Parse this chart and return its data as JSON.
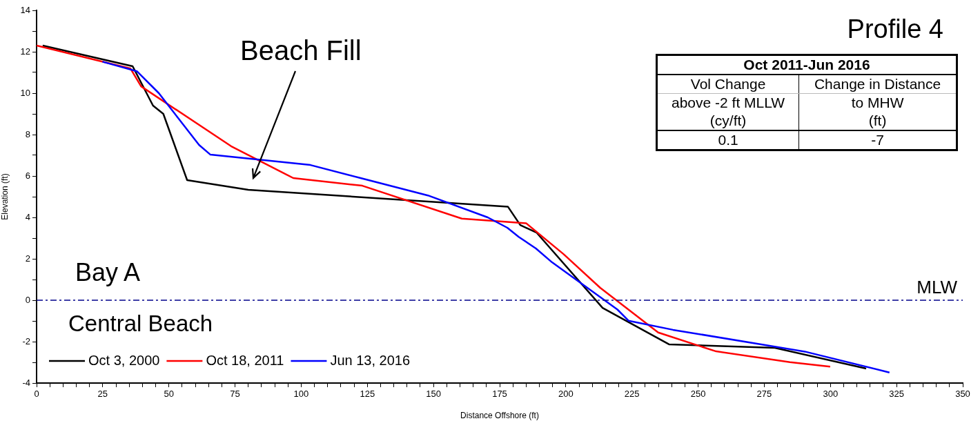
{
  "chart_data": {
    "type": "line",
    "xlabel": "Distance Offshore (ft)",
    "ylabel": "Elevation (ft)",
    "xlim": [
      0,
      350
    ],
    "ylim": [
      -4,
      14
    ],
    "xticks": [
      0,
      {
        "value": 5,
        "label": null
      },
      {
        "value": 10,
        "label": null
      },
      {
        "value": 15,
        "label": null
      },
      {
        "value": 20,
        "label": null
      },
      25,
      {
        "value": 30,
        "label": null
      },
      {
        "value": 35,
        "label": null
      },
      {
        "value": 40,
        "label": null
      },
      {
        "value": 45,
        "label": null
      },
      50,
      {
        "value": 55,
        "label": null
      },
      {
        "value": 60,
        "label": null
      },
      {
        "value": 65,
        "label": null
      },
      {
        "value": 70,
        "label": null
      },
      75,
      {
        "value": 80,
        "label": null
      },
      {
        "value": 85,
        "label": null
      },
      {
        "value": 90,
        "label": null
      },
      {
        "value": 95,
        "label": null
      },
      100,
      {
        "value": 105,
        "label": null
      },
      {
        "value": 110,
        "label": null
      },
      {
        "value": 115,
        "label": null
      },
      {
        "value": 120,
        "label": null
      },
      125,
      {
        "value": 130,
        "label": null
      },
      {
        "value": 135,
        "label": null
      },
      {
        "value": 140,
        "label": null
      },
      {
        "value": 145,
        "label": null
      },
      150,
      {
        "value": 155,
        "label": null
      },
      {
        "value": 160,
        "label": null
      },
      {
        "value": 165,
        "label": null
      },
      {
        "value": 170,
        "label": null
      },
      175,
      {
        "value": 180,
        "label": null
      },
      {
        "value": 185,
        "label": null
      },
      {
        "value": 190,
        "label": null
      },
      {
        "value": 195,
        "label": null
      },
      200,
      {
        "value": 205,
        "label": null
      },
      {
        "value": 210,
        "label": null
      },
      {
        "value": 215,
        "label": null
      },
      {
        "value": 220,
        "label": null
      },
      225,
      {
        "value": 230,
        "label": null
      },
      {
        "value": 235,
        "label": null
      },
      {
        "value": 240,
        "label": null
      },
      {
        "value": 245,
        "label": null
      },
      250,
      {
        "value": 255,
        "label": null
      },
      {
        "value": 260,
        "label": null
      },
      {
        "value": 265,
        "label": null
      },
      {
        "value": 270,
        "label": null
      },
      275,
      {
        "value": 280,
        "label": null
      },
      {
        "value": 285,
        "label": null
      },
      {
        "value": 290,
        "label": null
      },
      {
        "value": 295,
        "label": null
      },
      300,
      {
        "value": 305,
        "label": null
      },
      {
        "value": 310,
        "label": null
      },
      {
        "value": 315,
        "label": null
      },
      {
        "value": 320,
        "label": null
      },
      325,
      {
        "value": 330,
        "label": null
      },
      {
        "value": 335,
        "label": null
      },
      {
        "value": 340,
        "label": null
      },
      {
        "value": 345,
        "label": null
      },
      350
    ],
    "yticks": [
      -4,
      {
        "value": -3,
        "label": null
      },
      -2,
      {
        "value": -1,
        "label": null
      },
      0,
      {
        "value": 1,
        "label": null
      },
      2,
      {
        "value": 3,
        "label": null
      },
      4,
      {
        "value": 5,
        "label": null
      },
      6,
      {
        "value": 7,
        "label": null
      },
      8,
      {
        "value": 9,
        "label": null
      },
      10,
      {
        "value": 11,
        "label": null
      },
      12,
      {
        "value": 13,
        "label": null
      },
      14
    ],
    "grid": false,
    "legend": "bottom left",
    "marker": "none",
    "line_style": "solid",
    "series": [
      {
        "name": "Oct 3, 2000",
        "color": "#000000",
        "x": [
          2.3,
          36.3,
          44,
          47.9,
          56.9,
          80,
          178.1,
          182.8,
          189,
          213.9,
          239,
          279,
          313.5
        ],
        "values": [
          12.3,
          11.3,
          9.4,
          9.0,
          5.8,
          5.33,
          4.52,
          3.63,
          3.26,
          -0.37,
          -2.13,
          -2.3,
          -3.3
        ]
      },
      {
        "name": "Oct 18, 2011",
        "color": "#ff0000",
        "x": [
          0,
          35.5,
          39.5,
          73.5,
          97,
          123.1,
          160.7,
          185,
          199.2,
          213,
          234.9,
          256.8,
          284.7,
          299.9
        ],
        "values": [
          12.3,
          11.19,
          10.33,
          7.44,
          5.9,
          5.53,
          3.94,
          3.72,
          2.22,
          0.6,
          -1.56,
          -2.47,
          -2.99,
          -3.21
        ]
      },
      {
        "name": "Jun 13, 2016",
        "color": "#0000ff",
        "x": [
          24.9,
          37.9,
          46.2,
          61.4,
          65.7,
          103.5,
          122.7,
          147.9,
          170.5,
          177.9,
          182.2,
          188.7,
          194.8,
          219.5,
          223.7,
          240.5,
          290.3,
          322.3
        ],
        "values": [
          11.52,
          11.06,
          10.0,
          7.5,
          7.03,
          6.53,
          5.89,
          5.06,
          4.0,
          3.5,
          3.06,
          2.5,
          1.83,
          -0.45,
          -0.99,
          -1.43,
          -2.48,
          -3.49
        ]
      }
    ],
    "ref_lines": [
      {
        "axis": "y",
        "value": 0,
        "label": "MLW",
        "color": "#00008b",
        "line_style": "dashed"
      }
    ],
    "annotations": [
      "Profile 4",
      "Beach Fill",
      "Bay A",
      "Central Beach",
      "Oct 2011-Jun 2016",
      "Vol Change",
      "Change in Distance",
      "above -2 ft MLLW",
      "to MHW",
      "(cy/ft)",
      "(ft)",
      "0.1",
      "-7"
    ]
  }
}
